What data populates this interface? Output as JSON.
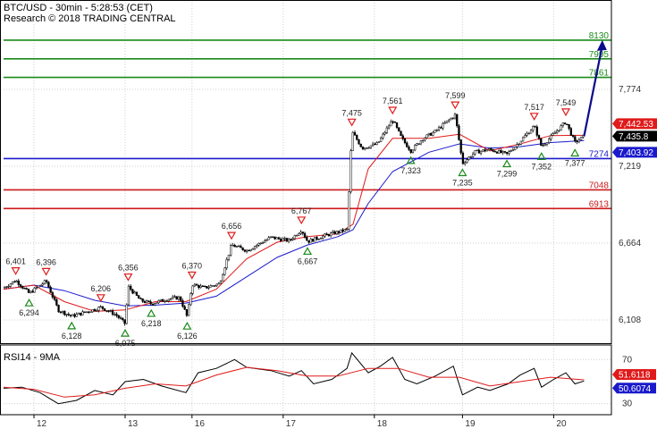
{
  "chart_data": {
    "type": "candlestick",
    "symbol_line": "BTC/USD - 30min - 5:28:53 (CET)",
    "research_line": "Research © 2018 TRADING CENTRAL",
    "x_tick_labels": [
      "12",
      "13",
      "16",
      "17",
      "18",
      "19",
      "20"
    ],
    "y_tick_labels": [
      "7,774",
      "7,219",
      "6,664",
      "6,108"
    ],
    "ylim": [
      5940,
      8420
    ],
    "grid": true,
    "horizontal_levels": [
      {
        "value": 8130,
        "label": "8130",
        "color": "#1a8a1a"
      },
      {
        "value": 7995,
        "label": "7995",
        "color": "#1a8a1a"
      },
      {
        "value": 7861,
        "label": "7861",
        "color": "#1a8a1a"
      },
      {
        "value": 7274,
        "label": "7274",
        "color": "#1a1acc"
      },
      {
        "value": 7048,
        "label": "7048",
        "color": "#cc1a1a"
      },
      {
        "value": 6913,
        "label": "6913",
        "color": "#cc1a1a"
      }
    ],
    "price_tags": [
      {
        "value": 7442,
        "label": "7,442.53",
        "color": "#e01a1a"
      },
      {
        "value": 7436,
        "label": "7,435.8",
        "color": "#000000"
      },
      {
        "value": 7404,
        "label": "7,403.92",
        "color": "#1a1acc"
      }
    ],
    "peaks": [
      {
        "x": 0.02,
        "y": 6401,
        "label": "6,401"
      },
      {
        "x": 0.07,
        "y": 6396,
        "label": "6,396"
      },
      {
        "x": 0.16,
        "y": 6206,
        "label": "6,206"
      },
      {
        "x": 0.205,
        "y": 6356,
        "label": "6,356"
      },
      {
        "x": 0.31,
        "y": 6370,
        "label": "6,370"
      },
      {
        "x": 0.375,
        "y": 6656,
        "label": "6,656"
      },
      {
        "x": 0.49,
        "y": 6767,
        "label": "6,767"
      },
      {
        "x": 0.573,
        "y": 7475,
        "label": "7,475"
      },
      {
        "x": 0.64,
        "y": 7561,
        "label": "7,561"
      },
      {
        "x": 0.743,
        "y": 7599,
        "label": "7,599"
      },
      {
        "x": 0.873,
        "y": 7517,
        "label": "7,517"
      },
      {
        "x": 0.925,
        "y": 7549,
        "label": "7,549"
      }
    ],
    "troughs": [
      {
        "x": 0.042,
        "y": 6294,
        "label": "6,294"
      },
      {
        "x": 0.112,
        "y": 6128,
        "label": "6,128"
      },
      {
        "x": 0.2,
        "y": 6075,
        "label": "6,075"
      },
      {
        "x": 0.243,
        "y": 6218,
        "label": "6,218"
      },
      {
        "x": 0.302,
        "y": 6126,
        "label": "6,126"
      },
      {
        "x": 0.5,
        "y": 6667,
        "label": "6,667"
      },
      {
        "x": 0.67,
        "y": 7323,
        "label": "7,323"
      },
      {
        "x": 0.755,
        "y": 7235,
        "label": "7,235"
      },
      {
        "x": 0.828,
        "y": 7299,
        "label": "7,299"
      },
      {
        "x": 0.885,
        "y": 7352,
        "label": "7,352"
      },
      {
        "x": 0.94,
        "y": 7377,
        "label": "7,377"
      }
    ],
    "price_path": [
      [
        0.0,
        6340
      ],
      [
        0.02,
        6395
      ],
      [
        0.042,
        6300
      ],
      [
        0.07,
        6390
      ],
      [
        0.09,
        6180
      ],
      [
        0.112,
        6135
      ],
      [
        0.15,
        6185
      ],
      [
        0.16,
        6200
      ],
      [
        0.185,
        6145
      ],
      [
        0.2,
        6080
      ],
      [
        0.205,
        6350
      ],
      [
        0.225,
        6250
      ],
      [
        0.243,
        6225
      ],
      [
        0.27,
        6260
      ],
      [
        0.29,
        6270
      ],
      [
        0.302,
        6130
      ],
      [
        0.31,
        6365
      ],
      [
        0.33,
        6340
      ],
      [
        0.355,
        6370
      ],
      [
        0.375,
        6650
      ],
      [
        0.4,
        6610
      ],
      [
        0.44,
        6705
      ],
      [
        0.47,
        6680
      ],
      [
        0.49,
        6760
      ],
      [
        0.5,
        6675
      ],
      [
        0.53,
        6720
      ],
      [
        0.565,
        6760
      ],
      [
        0.573,
        7470
      ],
      [
        0.59,
        7350
      ],
      [
        0.615,
        7380
      ],
      [
        0.64,
        7555
      ],
      [
        0.655,
        7420
      ],
      [
        0.67,
        7330
      ],
      [
        0.69,
        7420
      ],
      [
        0.71,
        7470
      ],
      [
        0.743,
        7590
      ],
      [
        0.755,
        7240
      ],
      [
        0.775,
        7320
      ],
      [
        0.8,
        7340
      ],
      [
        0.828,
        7305
      ],
      [
        0.85,
        7400
      ],
      [
        0.873,
        7510
      ],
      [
        0.885,
        7360
      ],
      [
        0.905,
        7450
      ],
      [
        0.925,
        7540
      ],
      [
        0.94,
        7390
      ],
      [
        0.955,
        7436
      ]
    ],
    "projection": [
      [
        0.955,
        7436
      ],
      [
        0.985,
        8130
      ]
    ],
    "ma_fast": [
      [
        0.0,
        6330
      ],
      [
        0.05,
        6360
      ],
      [
        0.1,
        6240
      ],
      [
        0.15,
        6170
      ],
      [
        0.2,
        6180
      ],
      [
        0.25,
        6240
      ],
      [
        0.3,
        6240
      ],
      [
        0.35,
        6330
      ],
      [
        0.4,
        6550
      ],
      [
        0.45,
        6670
      ],
      [
        0.5,
        6710
      ],
      [
        0.55,
        6730
      ],
      [
        0.575,
        6800
      ],
      [
        0.6,
        7200
      ],
      [
        0.64,
        7420
      ],
      [
        0.7,
        7420
      ],
      [
        0.75,
        7450
      ],
      [
        0.8,
        7330
      ],
      [
        0.85,
        7380
      ],
      [
        0.9,
        7440
      ],
      [
        0.955,
        7442
      ]
    ],
    "ma_slow": [
      [
        0.0,
        6330
      ],
      [
        0.05,
        6360
      ],
      [
        0.1,
        6320
      ],
      [
        0.15,
        6250
      ],
      [
        0.2,
        6210
      ],
      [
        0.25,
        6215
      ],
      [
        0.3,
        6230
      ],
      [
        0.35,
        6280
      ],
      [
        0.4,
        6420
      ],
      [
        0.45,
        6560
      ],
      [
        0.5,
        6650
      ],
      [
        0.55,
        6710
      ],
      [
        0.575,
        6760
      ],
      [
        0.6,
        6950
      ],
      [
        0.64,
        7180
      ],
      [
        0.7,
        7320
      ],
      [
        0.75,
        7380
      ],
      [
        0.8,
        7350
      ],
      [
        0.85,
        7360
      ],
      [
        0.9,
        7390
      ],
      [
        0.955,
        7404
      ]
    ],
    "rsi_panel": {
      "title": "RSI14 - 9MA",
      "tick_labels": [
        "70",
        "30"
      ],
      "ylim": [
        20,
        80
      ],
      "value_tags": [
        {
          "value": 51.6,
          "label": "51.6118",
          "color": "#e01a1a"
        },
        {
          "value": 50.6,
          "label": "50.6074",
          "color": "#1a1acc"
        }
      ],
      "rsi": [
        [
          0.0,
          44
        ],
        [
          0.03,
          45
        ],
        [
          0.06,
          40
        ],
        [
          0.09,
          30
        ],
        [
          0.12,
          33
        ],
        [
          0.15,
          42
        ],
        [
          0.18,
          38
        ],
        [
          0.2,
          50
        ],
        [
          0.23,
          52
        ],
        [
          0.26,
          46
        ],
        [
          0.3,
          40
        ],
        [
          0.32,
          58
        ],
        [
          0.35,
          62
        ],
        [
          0.38,
          70
        ],
        [
          0.4,
          63
        ],
        [
          0.44,
          60
        ],
        [
          0.47,
          55
        ],
        [
          0.49,
          60
        ],
        [
          0.51,
          48
        ],
        [
          0.54,
          52
        ],
        [
          0.565,
          62
        ],
        [
          0.573,
          76
        ],
        [
          0.6,
          58
        ],
        [
          0.62,
          64
        ],
        [
          0.64,
          72
        ],
        [
          0.66,
          52
        ],
        [
          0.68,
          48
        ],
        [
          0.71,
          55
        ],
        [
          0.74,
          64
        ],
        [
          0.755,
          38
        ],
        [
          0.78,
          45
        ],
        [
          0.8,
          42
        ],
        [
          0.83,
          48
        ],
        [
          0.85,
          56
        ],
        [
          0.873,
          62
        ],
        [
          0.885,
          45
        ],
        [
          0.905,
          52
        ],
        [
          0.925,
          58
        ],
        [
          0.94,
          48
        ],
        [
          0.955,
          50.6
        ]
      ],
      "rsi_ma": [
        [
          0.0,
          45
        ],
        [
          0.05,
          43
        ],
        [
          0.1,
          36
        ],
        [
          0.15,
          38
        ],
        [
          0.2,
          44
        ],
        [
          0.25,
          48
        ],
        [
          0.3,
          46
        ],
        [
          0.35,
          56
        ],
        [
          0.4,
          63
        ],
        [
          0.45,
          60
        ],
        [
          0.5,
          55
        ],
        [
          0.55,
          55
        ],
        [
          0.6,
          62
        ],
        [
          0.65,
          62
        ],
        [
          0.7,
          54
        ],
        [
          0.75,
          54
        ],
        [
          0.8,
          46
        ],
        [
          0.85,
          50
        ],
        [
          0.9,
          54
        ],
        [
          0.955,
          51.6
        ]
      ]
    }
  }
}
